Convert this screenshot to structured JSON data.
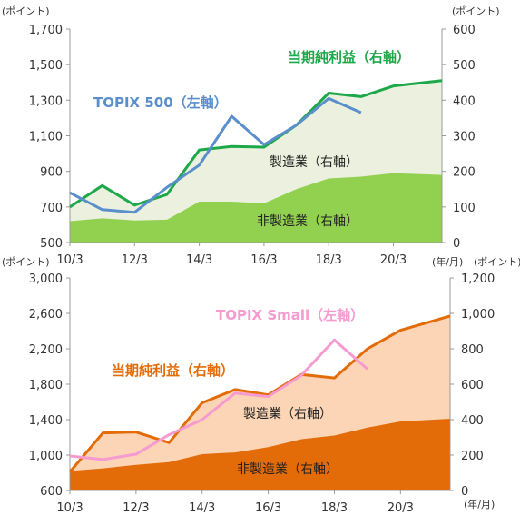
{
  "chart_data": [
    {
      "type": "area",
      "unit_left": "(ポイント)",
      "unit_right": "(ポイント)",
      "x_unit": "(年/月)",
      "x_tick_labels": [
        "10/3",
        "12/3",
        "14/3",
        "16/3",
        "18/3",
        "20/3"
      ],
      "x_range": [
        2010.0,
        2021.5
      ],
      "ylim_left": [
        500,
        1700
      ],
      "ylim_right": [
        0,
        600
      ],
      "yticks_left": [
        "500",
        "700",
        "900",
        "1,100",
        "1,300",
        "1,500",
        "1,700"
      ],
      "yticks_right": [
        "0",
        "100",
        "200",
        "300",
        "400",
        "500",
        "600"
      ],
      "labels": {
        "index": "TOPIX 500（左軸）",
        "profit": "当期純利益（右軸）",
        "mfg": "製造業（右軸）",
        "nonmfg": "非製造業（右軸）"
      },
      "colors": {
        "index": "#5B8FCC",
        "profit": "#1DA84A",
        "mfg_area": "#EBF1DE",
        "nonmfg_area": "#92D050"
      },
      "series": [
        {
          "key": "index",
          "axis": "left",
          "x": [
            2010.0,
            2011.0,
            2012.0,
            2013.0,
            2014.0,
            2015.0,
            2016.0,
            2017.0,
            2018.0,
            2019.0
          ],
          "values": [
            780,
            685,
            670,
            810,
            935,
            1210,
            1050,
            1160,
            1310,
            1230
          ]
        },
        {
          "key": "profit",
          "axis": "right",
          "x": [
            2010.0,
            2011.0,
            2012.0,
            2013.0,
            2014.0,
            2015.0,
            2016.0,
            2017.0,
            2018.0,
            2019.0,
            2020.0,
            2021.5
          ],
          "values": [
            100,
            160,
            105,
            135,
            260,
            270,
            268,
            330,
            420,
            410,
            440,
            455
          ]
        },
        {
          "key": "nonmfg",
          "axis": "right",
          "x": [
            2010.0,
            2011.0,
            2012.0,
            2013.0,
            2014.0,
            2015.0,
            2016.0,
            2017.0,
            2018.0,
            2019.0,
            2020.0,
            2021.5
          ],
          "values": [
            60,
            68,
            62,
            64,
            115,
            115,
            110,
            150,
            180,
            185,
            195,
            190
          ]
        }
      ]
    },
    {
      "type": "area",
      "unit_left": "(ポイント)",
      "unit_right": "(ポイント)",
      "x_unit": "(年/月)",
      "x_tick_labels": [
        "10/3",
        "12/3",
        "14/3",
        "16/3",
        "18/3",
        "20/3"
      ],
      "x_range": [
        2010.0,
        2021.5
      ],
      "ylim_left": [
        600,
        3000
      ],
      "ylim_right": [
        0,
        1200
      ],
      "yticks_left": [
        "600",
        "1,000",
        "1,400",
        "1,800",
        "2,200",
        "2,600",
        "3,000"
      ],
      "yticks_right": [
        "0",
        "200",
        "400",
        "600",
        "800",
        "1,000",
        "1,200"
      ],
      "labels": {
        "index": "TOPIX Small（左軸）",
        "profit": "当期純利益（右軸）",
        "mfg": "製造業（右軸）",
        "nonmfg": "非製造業（右軸）"
      },
      "colors": {
        "index": "#F59BD0",
        "profit": "#E36C09",
        "mfg_area": "#FBD5B5",
        "nonmfg_area": "#E36C09"
      },
      "series": [
        {
          "key": "index",
          "axis": "left",
          "x": [
            2010.0,
            2011.0,
            2012.0,
            2013.0,
            2014.0,
            2015.0,
            2016.0,
            2017.0,
            2018.0,
            2019.0
          ],
          "values": [
            990,
            950,
            1010,
            1230,
            1400,
            1700,
            1660,
            1900,
            2300,
            1970
          ]
        },
        {
          "key": "profit",
          "axis": "right",
          "x": [
            2010.0,
            2011.0,
            2012.0,
            2013.0,
            2014.0,
            2015.0,
            2016.0,
            2017.0,
            2018.0,
            2019.0,
            2020.0,
            2021.5
          ],
          "values": [
            105,
            325,
            330,
            270,
            495,
            570,
            540,
            655,
            635,
            800,
            905,
            985
          ]
        },
        {
          "key": "nonmfg",
          "axis": "right",
          "x": [
            2010.0,
            2011.0,
            2012.0,
            2013.0,
            2014.0,
            2015.0,
            2016.0,
            2017.0,
            2018.0,
            2019.0,
            2020.0,
            2021.5
          ],
          "values": [
            110,
            125,
            145,
            160,
            205,
            215,
            245,
            290,
            310,
            355,
            390,
            405
          ]
        }
      ]
    }
  ]
}
